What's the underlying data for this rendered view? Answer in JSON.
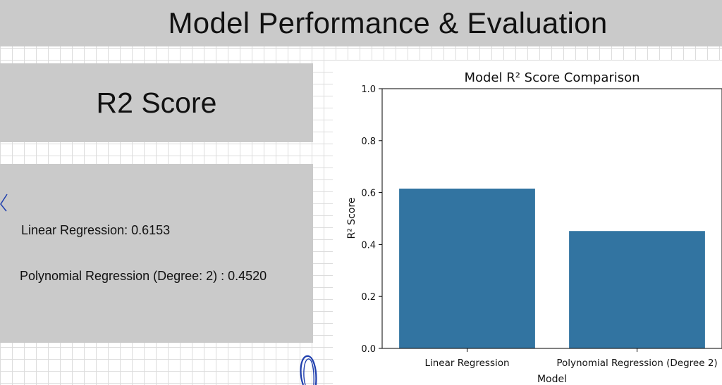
{
  "header": {
    "title": "Model Performance & Evaluation"
  },
  "r2_section": {
    "heading": "R2 Score",
    "scores": [
      "Linear Regression: 0.6153",
      "Polynomial Regression (Degree: 2) : 0.4520"
    ]
  },
  "chart_data": {
    "type": "bar",
    "title": "Model R² Score Comparison",
    "xlabel": "Model",
    "ylabel": "R² Score",
    "categories": [
      "Linear Regression",
      "Polynomial Regression (Degree 2)"
    ],
    "values": [
      0.6153,
      0.452
    ],
    "ylim": [
      0,
      1.0
    ],
    "yticks": [
      0.0,
      0.2,
      0.4,
      0.6,
      0.8,
      1.0
    ],
    "bar_color": "#3274a1",
    "grid": false,
    "legend": "none"
  }
}
